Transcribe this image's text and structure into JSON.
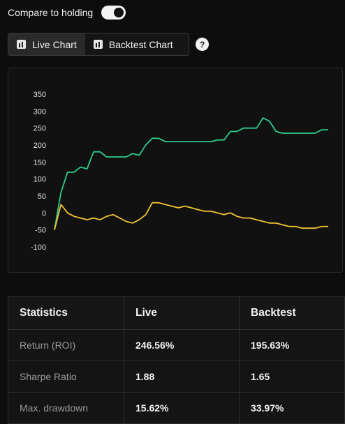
{
  "toggle": {
    "label": "Compare to holding",
    "on": true
  },
  "tabs": [
    {
      "label": "Live Chart",
      "icon": "bar-chart-icon",
      "active": true
    },
    {
      "label": "Backtest Chart",
      "icon": "bar-chart-icon",
      "active": false
    }
  ],
  "help": {
    "label": "?"
  },
  "chart_data": {
    "type": "line",
    "title": "",
    "xlabel": "",
    "ylabel": "",
    "ylim": [
      -100,
      350
    ],
    "yticks": [
      "350",
      "300",
      "250",
      "200",
      "150",
      "100",
      "50",
      "0",
      "-50",
      "-100"
    ],
    "grid": false,
    "x": [
      0,
      1,
      2,
      3,
      4,
      5,
      6,
      7,
      8,
      9,
      10,
      11,
      12,
      13,
      14,
      15,
      16,
      17,
      18,
      19,
      20,
      21,
      22,
      23,
      24,
      25,
      26,
      27,
      28,
      29,
      30,
      31,
      32,
      33,
      34,
      35,
      36,
      37,
      38,
      39,
      40,
      41,
      42
    ],
    "series": [
      {
        "color": "#2ecc8a",
        "values": [
          -50,
          60,
          120,
          120,
          135,
          130,
          180,
          180,
          165,
          165,
          165,
          165,
          175,
          170,
          200,
          220,
          220,
          210,
          210,
          210,
          210,
          210,
          210,
          210,
          210,
          215,
          215,
          240,
          240,
          250,
          250,
          250,
          280,
          270,
          240,
          235,
          235,
          235,
          235,
          235,
          235,
          245,
          245
        ]
      },
      {
        "color": "#f1c232",
        "values": [
          -50,
          25,
          0,
          -10,
          -15,
          -20,
          -15,
          -20,
          -10,
          -5,
          -15,
          -25,
          -30,
          -20,
          -5,
          30,
          30,
          25,
          20,
          15,
          20,
          15,
          10,
          5,
          5,
          0,
          -5,
          0,
          -10,
          -15,
          -15,
          -20,
          -25,
          -30,
          -30,
          -35,
          -40,
          -40,
          -45,
          -45,
          -45,
          -40,
          -40
        ]
      }
    ]
  },
  "stats": {
    "headers": [
      "Statistics",
      "Live",
      "Backtest"
    ],
    "rows": [
      {
        "label": "Return (ROI)",
        "live": "246.56%",
        "backtest": "195.63%"
      },
      {
        "label": "Sharpe Ratio",
        "live": "1.88",
        "backtest": "1.65"
      },
      {
        "label": "Max. drawdown",
        "live": "15.62%",
        "backtest": "33.97%"
      }
    ]
  }
}
